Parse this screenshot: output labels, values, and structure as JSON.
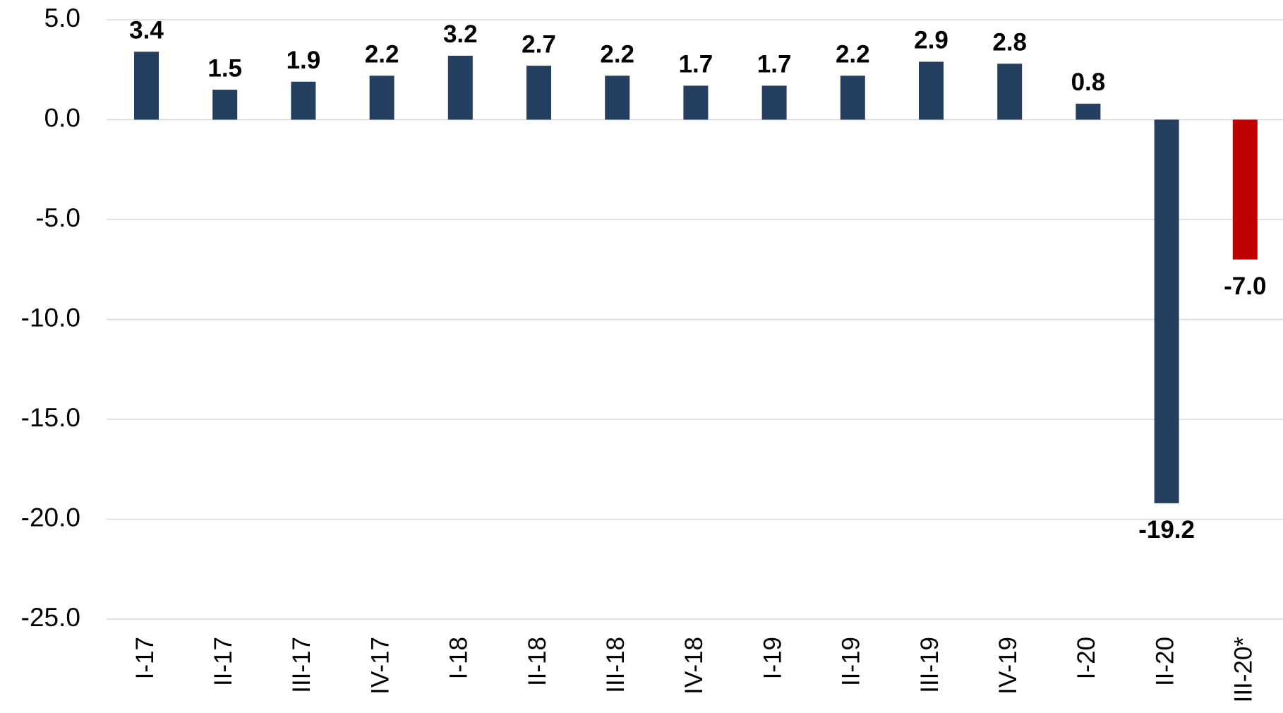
{
  "chart_data": {
    "type": "bar",
    "categories": [
      "I-17",
      "II-17",
      "III-17",
      "IV-17",
      "I-18",
      "II-18",
      "III-18",
      "IV-18",
      "I-19",
      "II-19",
      "III-19",
      "IV-19",
      "I-20",
      "II-20",
      "III-20*"
    ],
    "values": [
      3.4,
      1.5,
      1.9,
      2.2,
      3.2,
      2.7,
      2.2,
      1.7,
      1.7,
      2.2,
      2.9,
      2.8,
      0.8,
      -19.2,
      -7.0
    ],
    "value_labels": [
      "3.4",
      "1.5",
      "1.9",
      "2.2",
      "3.2",
      "2.7",
      "2.2",
      "1.7",
      "1.7",
      "2.2",
      "2.9",
      "2.8",
      "0.8",
      "-19.2",
      "-7.0"
    ],
    "colors": [
      "#253f60",
      "#253f60",
      "#253f60",
      "#253f60",
      "#253f60",
      "#253f60",
      "#253f60",
      "#253f60",
      "#253f60",
      "#253f60",
      "#253f60",
      "#253f60",
      "#253f60",
      "#253f60",
      "#c00000"
    ],
    "ylim": [
      -25,
      5
    ],
    "yticks": [
      {
        "value": 5,
        "label": "5.0"
      },
      {
        "value": 0,
        "label": "0.0"
      },
      {
        "value": -5,
        "label": "-5.0"
      },
      {
        "value": -10,
        "label": "-10.0"
      },
      {
        "value": -15,
        "label": "-15.0"
      },
      {
        "value": -20,
        "label": "-20.0"
      },
      {
        "value": -25,
        "label": "-25.0"
      }
    ],
    "grid": true
  }
}
